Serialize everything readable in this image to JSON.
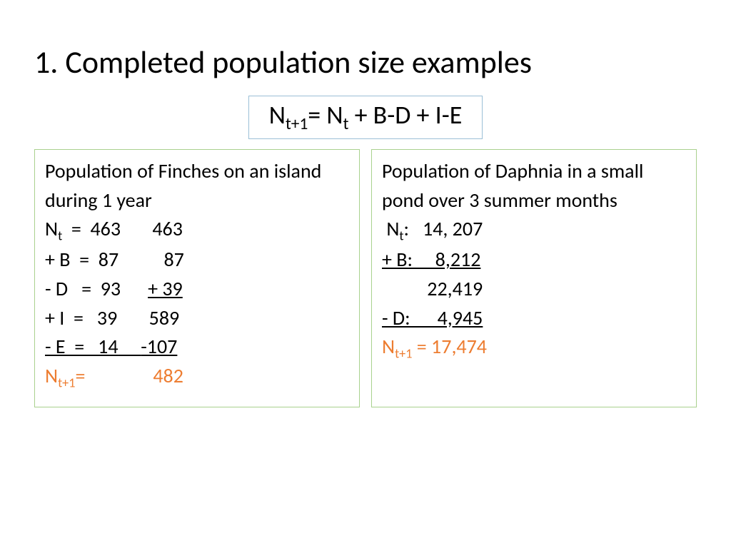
{
  "slide": {
    "title": "1. Completed population size examples",
    "formula": {
      "pre": "N",
      "sub1": "t+1",
      "mid": "= N",
      "sub2": "t",
      "post": " + B-D + I-E"
    },
    "colors": {
      "background": "#ffffff",
      "text": "#000000",
      "accent": "#ed7d31",
      "formula_border": "#9bbfd6",
      "box_border": "#a9d18e"
    },
    "fonts": {
      "title_pt": 44,
      "formula_pt": 36,
      "body_pt": 28
    },
    "left": {
      "heading": "Population of Finches on an island during 1 year",
      "lines": {
        "nt": {
          "label_pre": "N",
          "label_sub": "t",
          "label_post": "  =  463",
          "col2": "463"
        },
        "b": {
          "label": "+ B  =  87",
          "col2": " 87"
        },
        "d": {
          "label": "- D   =  93",
          "col2": "+ 39",
          "col2_underline": true
        },
        "i": {
          "label": "+ I  =   39",
          "col2": "589"
        },
        "e": {
          "label": "- E  =   14",
          "col2": "-107",
          "row_underline": true
        },
        "result": {
          "label_pre": "N",
          "label_sub": "t+1",
          "label_post": "=",
          "col2": "482"
        }
      }
    },
    "right": {
      "heading": "Population of Daphnia in a small pond over 3 summer months",
      "lines": {
        "nt": {
          "label_pre": " N",
          "label_sub": "t",
          "label_post": ":   14, 207"
        },
        "b": {
          "text": "+ B:     8,212",
          "underline": true
        },
        "sum": {
          "text": "          22,419"
        },
        "d": {
          "text": "- D:      4,945",
          "underline": true
        },
        "result": {
          "label_pre": "N",
          "label_sub": "t+1",
          "label_post": " = 17,474"
        }
      }
    }
  }
}
